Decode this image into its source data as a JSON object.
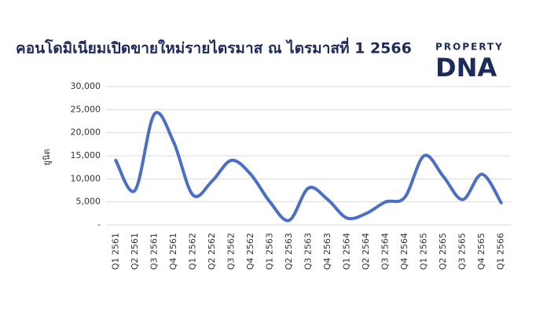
{
  "chart_data": {
    "type": "line",
    "title": "คอนโดมิเนียมเปิดขายใหม่รายไตรมาส ณ ไตรมาสที่ 1 2566",
    "y_label": "ยูนิต",
    "logo": {
      "top": "PROPERTY",
      "bottom": "DNA"
    },
    "categories": [
      "Q1 2561",
      "Q2 2561",
      "Q3 2561",
      "Q4 2561",
      "Q1 2562",
      "Q2 2562",
      "Q3 2562",
      "Q4 2562",
      "Q1 2563",
      "Q2 2563",
      "Q3 2563",
      "Q4 2563",
      "Q1 2564",
      "Q2 2564",
      "Q3 2564",
      "Q4 2564",
      "Q1 2565",
      "Q2 2565",
      "Q3 2565",
      "Q4 2565",
      "Q1 2566"
    ],
    "series": [
      {
        "name": "ยูนิต",
        "color": "#4a6fc4",
        "values": [
          14000,
          7500,
          24000,
          18000,
          6500,
          9500,
          14000,
          11000,
          5000,
          1000,
          8000,
          5500,
          1500,
          2500,
          5000,
          6000,
          15000,
          10500,
          5500,
          11000,
          4800
        ]
      }
    ],
    "ylim": [
      0,
      30000
    ],
    "yticks": [
      {
        "value": 0,
        "label": "-"
      },
      {
        "value": 5000,
        "label": "5,000"
      },
      {
        "value": 10000,
        "label": "10,000"
      },
      {
        "value": 15000,
        "label": "15,000"
      },
      {
        "value": 20000,
        "label": "20,000"
      },
      {
        "value": 25000,
        "label": "25,000"
      },
      {
        "value": 30000,
        "label": "30,000"
      }
    ],
    "grid": true
  }
}
